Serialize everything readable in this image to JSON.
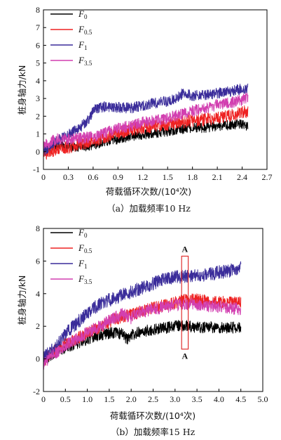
{
  "colors": {
    "F0": "#000000",
    "F05": "#ee2222",
    "F1": "#3a2c9a",
    "F35": "#d23fb0",
    "marker_box": "#e03030"
  },
  "chart_data": [
    {
      "type": "line",
      "caption": "（a）加载频率10 Hz",
      "xlabel": "荷载循环次数/(10⁴次)",
      "ylabel": "桩身轴力/kN",
      "xlim": [
        0,
        2.7
      ],
      "ylim": [
        -1,
        8
      ],
      "xticks": [
        "0",
        "0.3",
        "0.6",
        "0.9",
        "1.2",
        "1.5",
        "1.8",
        "2.1",
        "2.4",
        "2.7"
      ],
      "yticks": [
        "-1",
        "0",
        "1",
        "2",
        "3",
        "4",
        "5",
        "6",
        "7",
        "8"
      ],
      "legend_position": "top-left",
      "series": [
        {
          "name": "F0",
          "label_main": "F",
          "label_sub": "0",
          "color_key": "F0",
          "x": [
            0,
            0.1,
            0.2,
            0.3,
            0.45,
            0.6,
            0.75,
            0.9,
            1.05,
            1.2,
            1.35,
            1.5,
            1.65,
            1.8,
            1.95,
            2.1,
            2.25,
            2.4,
            2.47
          ],
          "y": [
            0.1,
            0.35,
            0.35,
            0.3,
            0.25,
            0.35,
            0.55,
            0.7,
            0.85,
            0.95,
            1.05,
            1.15,
            1.25,
            1.35,
            1.35,
            1.45,
            1.5,
            1.55,
            1.45
          ]
        },
        {
          "name": "F0.5",
          "label_main": "F",
          "label_sub": "0.5",
          "color_key": "F05",
          "x": [
            0,
            0.1,
            0.2,
            0.3,
            0.45,
            0.6,
            0.75,
            0.9,
            1.05,
            1.2,
            1.35,
            1.5,
            1.65,
            1.8,
            1.95,
            2.1,
            2.25,
            2.4,
            2.47
          ],
          "y": [
            -0.2,
            0.05,
            0.15,
            0.25,
            0.4,
            0.6,
            0.85,
            1.05,
            1.25,
            1.35,
            1.45,
            1.55,
            1.65,
            1.75,
            1.8,
            1.9,
            2.05,
            2.2,
            2.3
          ]
        },
        {
          "name": "F1",
          "label_main": "F",
          "label_sub": "1",
          "color_key": "F1",
          "x": [
            0,
            0.1,
            0.2,
            0.3,
            0.45,
            0.55,
            0.62,
            0.75,
            0.9,
            1.05,
            1.2,
            1.35,
            1.5,
            1.6,
            1.7,
            1.8,
            1.95,
            2.1,
            2.25,
            2.4,
            2.47
          ],
          "y": [
            0.0,
            0.4,
            0.7,
            0.95,
            1.4,
            1.8,
            2.45,
            2.55,
            2.5,
            2.45,
            2.6,
            2.75,
            2.85,
            3.0,
            3.35,
            3.15,
            3.2,
            3.3,
            3.4,
            3.55,
            3.6
          ]
        },
        {
          "name": "F3.5",
          "label_main": "F",
          "label_sub": "3.5",
          "color_key": "F35",
          "x": [
            0,
            0.1,
            0.2,
            0.3,
            0.45,
            0.6,
            0.75,
            0.9,
            1.05,
            1.2,
            1.35,
            1.5,
            1.65,
            1.8,
            1.95,
            2.1,
            2.25,
            2.4,
            2.47
          ],
          "y": [
            0.3,
            0.6,
            0.75,
            0.7,
            0.75,
            0.85,
            1.05,
            1.3,
            1.45,
            1.65,
            1.75,
            1.9,
            2.1,
            2.3,
            2.45,
            2.65,
            2.75,
            2.9,
            3.1
          ]
        }
      ]
    },
    {
      "type": "line",
      "caption": "（b）加载频率15 Hz",
      "xlabel": "荷载循环次数/(10⁴次)",
      "ylabel": "桩身轴力/kN",
      "xlim": [
        0,
        5.0
      ],
      "ylim": [
        -2,
        8
      ],
      "xticks": [
        "0",
        "0.5",
        "1.0",
        "1.5",
        "2.0",
        "2.5",
        "3.0",
        "3.5",
        "4.0",
        "4.5",
        "5.0"
      ],
      "yticks": [
        "-2",
        "0",
        "2",
        "4",
        "6",
        "8"
      ],
      "legend_position": "top-left",
      "annotation": {
        "label_top": "A",
        "label_bottom": "A",
        "x_range": [
          3.15,
          3.3
        ],
        "y_range": [
          0.6,
          6.3
        ]
      },
      "series": [
        {
          "name": "F0",
          "label_main": "F",
          "label_sub": "0",
          "color_key": "F0",
          "x": [
            0,
            0.2,
            0.4,
            0.6,
            0.8,
            1.0,
            1.2,
            1.4,
            1.6,
            1.8,
            1.9,
            2.0,
            2.2,
            2.4,
            2.6,
            2.8,
            3.0,
            3.2,
            3.4,
            3.6,
            3.8,
            4.0,
            4.2,
            4.5
          ],
          "y": [
            -0.2,
            0.3,
            0.6,
            0.8,
            1.0,
            1.2,
            1.4,
            1.55,
            1.6,
            1.55,
            1.2,
            1.45,
            1.65,
            1.75,
            1.85,
            1.9,
            2.0,
            2.05,
            1.95,
            1.9,
            1.95,
            1.9,
            1.9,
            1.95
          ]
        },
        {
          "name": "F0.5",
          "label_main": "F",
          "label_sub": "0.5",
          "color_key": "F05",
          "x": [
            0,
            0.2,
            0.4,
            0.6,
            0.8,
            1.0,
            1.2,
            1.4,
            1.6,
            1.8,
            2.0,
            2.2,
            2.4,
            2.6,
            2.8,
            3.0,
            3.2,
            3.4,
            3.6,
            3.8,
            4.0,
            4.2,
            4.5
          ],
          "y": [
            -0.2,
            0.4,
            0.8,
            1.0,
            1.3,
            1.6,
            1.85,
            2.1,
            2.4,
            2.6,
            2.7,
            2.9,
            3.05,
            3.2,
            3.3,
            3.45,
            3.6,
            3.65,
            3.6,
            3.5,
            3.5,
            3.45,
            3.5
          ]
        },
        {
          "name": "F1",
          "label_main": "F",
          "label_sub": "1",
          "color_key": "F1",
          "x": [
            0,
            0.2,
            0.4,
            0.6,
            0.8,
            1.0,
            1.2,
            1.4,
            1.6,
            1.8,
            2.0,
            2.2,
            2.4,
            2.6,
            2.8,
            3.0,
            3.2,
            3.4,
            3.6,
            3.8,
            4.0,
            4.2,
            4.4,
            4.5
          ],
          "y": [
            0.1,
            0.6,
            1.2,
            1.8,
            2.3,
            2.8,
            3.2,
            3.5,
            3.7,
            3.9,
            4.1,
            4.3,
            4.5,
            4.75,
            4.9,
            5.0,
            5.05,
            5.1,
            5.15,
            5.2,
            5.3,
            5.4,
            5.5,
            5.7
          ]
        },
        {
          "name": "F3.5",
          "label_main": "F",
          "label_sub": "3.5",
          "color_key": "F35",
          "x": [
            0,
            0.2,
            0.4,
            0.6,
            0.8,
            1.0,
            1.2,
            1.4,
            1.6,
            1.8,
            2.0,
            2.2,
            2.4,
            2.6,
            2.8,
            3.0,
            3.2,
            3.4,
            3.6,
            3.8,
            4.0,
            4.2,
            4.5
          ],
          "y": [
            -0.3,
            0.2,
            0.6,
            1.0,
            1.3,
            1.6,
            1.9,
            2.2,
            2.5,
            2.75,
            2.5,
            2.85,
            3.0,
            3.1,
            3.2,
            3.3,
            3.35,
            3.4,
            3.3,
            3.25,
            3.2,
            3.15,
            3.05
          ]
        }
      ]
    }
  ]
}
